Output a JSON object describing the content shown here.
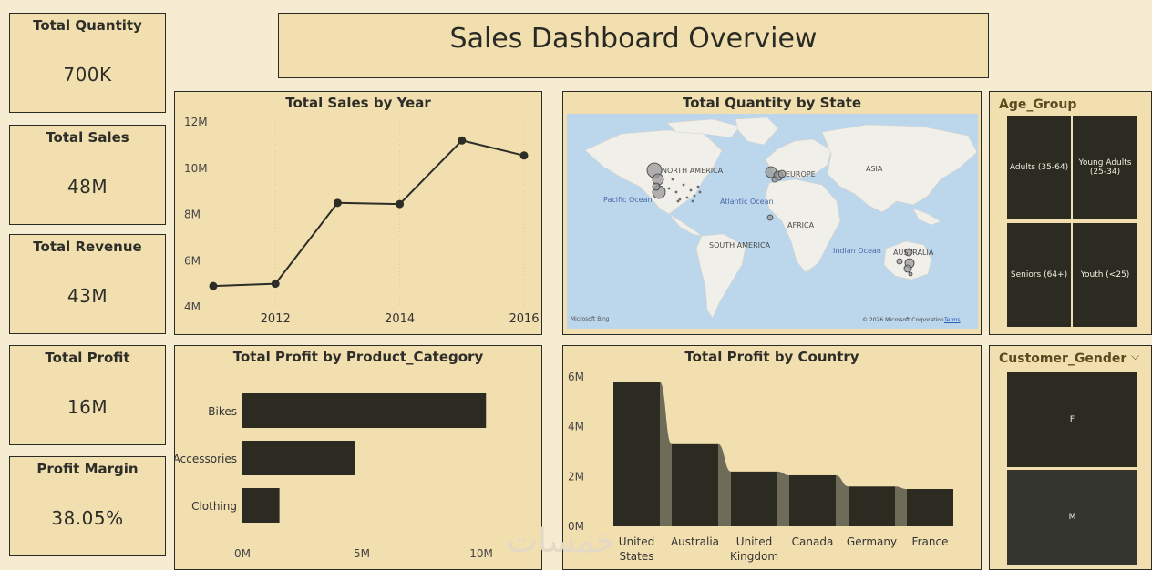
{
  "dashboard_title": "Sales Dashboard Overview",
  "kpis": [
    {
      "label": "Total Quantity",
      "value": "700K"
    },
    {
      "label": "Total Sales",
      "value": "48M"
    },
    {
      "label": "Total Revenue",
      "value": "43M"
    },
    {
      "label": "Total Profit",
      "value": "16M"
    },
    {
      "label": "Profit Margin",
      "value": "38.05%"
    }
  ],
  "panels": {
    "sales_by_year": "Total Sales by Year",
    "quantity_by_state": "Total Quantity by State",
    "profit_by_category": "Total Profit by Product_Category",
    "profit_by_country": "Total Profit by Country"
  },
  "map": {
    "continents": [
      "NORTH AMERICA",
      "EUROPE",
      "ASIA",
      "AFRICA",
      "SOUTH AMERICA",
      "AUSTRALIA"
    ],
    "oceans": [
      "Pacific Ocean",
      "Atlantic Ocean",
      "Indian Ocean"
    ],
    "attribution": "© 2026 Microsoft Corporation",
    "terms": "Terms",
    "logo": "Microsoft Bing"
  },
  "slicers": {
    "age_group": {
      "title": "Age_Group",
      "options": [
        "Adults (35-64)",
        "Young Adults (25-34)",
        "Seniors (64+)",
        "Youth (<25)"
      ]
    },
    "customer_gender": {
      "title": "Customer_Gender",
      "options": [
        "F",
        "M"
      ]
    }
  },
  "chart_data": [
    {
      "type": "line",
      "title": "Total Sales by Year",
      "x": [
        2011,
        2012,
        2013,
        2014,
        2015,
        2016
      ],
      "y": [
        4.9,
        5.0,
        8.5,
        8.45,
        11.2,
        10.55
      ],
      "x_ticks": [
        "2012",
        "2014",
        "2016"
      ],
      "y_ticks": [
        "4M",
        "6M",
        "8M",
        "10M",
        "12M"
      ],
      "ylim": [
        4,
        12
      ],
      "xlim": [
        2011,
        2016
      ]
    },
    {
      "type": "bar",
      "orientation": "horizontal",
      "title": "Total Profit by Product_Category",
      "categories": [
        "Bikes",
        "Accessories",
        "Clothing"
      ],
      "values": [
        10.2,
        4.7,
        1.55
      ],
      "x_ticks": [
        "0M",
        "5M",
        "10M"
      ],
      "xlim": [
        0,
        10
      ]
    },
    {
      "type": "bar",
      "title": "Total Profit by Country",
      "categories": [
        "United States",
        "Australia",
        "United Kingdom",
        "Canada",
        "Germany",
        "France"
      ],
      "values": [
        5.8,
        3.3,
        2.2,
        2.05,
        1.6,
        1.5
      ],
      "y_ticks": [
        "0M",
        "2M",
        "4M",
        "6M"
      ],
      "ylim": [
        0,
        6
      ]
    }
  ]
}
